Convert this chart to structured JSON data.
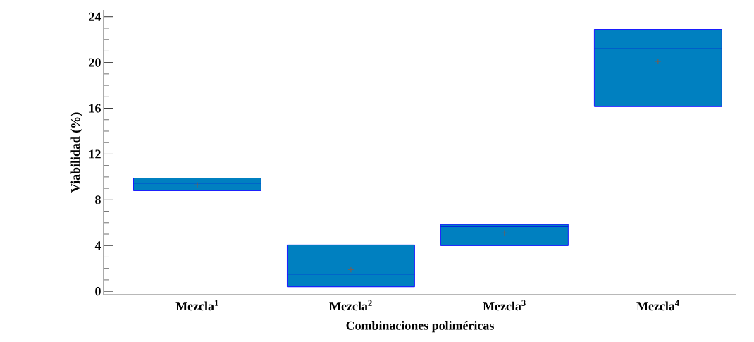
{
  "chart_data": {
    "type": "box",
    "xlabel": "Combinaciones poliméricas",
    "ylabel": "Viabilidad (%)",
    "categories": [
      "Mezcla$^{1}$",
      "Mezcla$^{2}$",
      "Mezcla$^{3}$",
      "Mezcla$^{4}$"
    ],
    "color": "#0080c0",
    "boxes": [
      {
        "low": 8.8,
        "q1": 8.8,
        "median": 9.45,
        "q3": 9.9,
        "high": 9.9,
        "mean": 9.3
      },
      {
        "low": 0.4,
        "q1": 0.4,
        "median": 1.5,
        "q3": 4.05,
        "high": 4.05,
        "mean": 1.9
      },
      {
        "low": 4.0,
        "q1": 4.0,
        "median": 5.65,
        "q3": 5.85,
        "high": 5.85,
        "mean": 5.1
      },
      {
        "low": 16.15,
        "q1": 16.15,
        "median": 21.2,
        "q3": 22.9,
        "high": 22.9,
        "mean": 20.1
      }
    ],
    "ylim": [
      -0.3,
      24.6
    ],
    "yticks": [
      0,
      {
        "value": 1,
        "label": null
      },
      {
        "value": 2,
        "label": null
      },
      {
        "value": 3,
        "label": null
      },
      4,
      {
        "value": 5,
        "label": null
      },
      {
        "value": 6,
        "label": null
      },
      {
        "value": 7,
        "label": null
      },
      8,
      {
        "value": 9,
        "label": null
      },
      {
        "value": 10,
        "label": null
      },
      {
        "value": 11,
        "label": null
      },
      12,
      {
        "value": 13,
        "label": null
      },
      {
        "value": 14,
        "label": null
      },
      {
        "value": 15,
        "label": null
      },
      16,
      {
        "value": 17,
        "label": null
      },
      {
        "value": 18,
        "label": null
      },
      {
        "value": 19,
        "label": null
      },
      20,
      {
        "value": 21,
        "label": null
      },
      {
        "value": 22,
        "label": null
      },
      {
        "value": 23,
        "label": null
      },
      24
    ]
  }
}
